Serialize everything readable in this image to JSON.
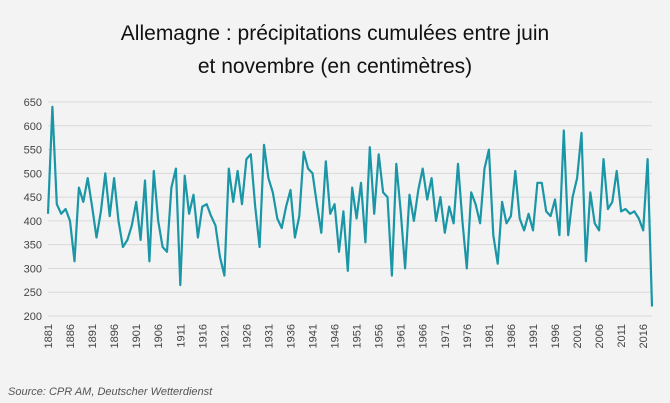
{
  "chart_data": {
    "type": "line",
    "title_line1": "Allemagne : précipitations cumulées entre juin",
    "title_line2": "et novembre (en centimètres)",
    "xlabel": "",
    "ylabel": "",
    "ylim": [
      200,
      650
    ],
    "yticks": [
      200,
      250,
      300,
      350,
      400,
      450,
      500,
      550,
      600,
      650
    ],
    "xticks": [
      1881,
      1886,
      1891,
      1896,
      1901,
      1906,
      1911,
      1916,
      1921,
      1926,
      1931,
      1936,
      1941,
      1946,
      1951,
      1956,
      1961,
      1966,
      1971,
      1976,
      1981,
      1986,
      1991,
      1996,
      2001,
      2006,
      2011,
      2016
    ],
    "grid": "horizontal",
    "line_color": "#1a96a6",
    "x_start": 1881,
    "x_end": 2018,
    "values": [
      415,
      640,
      435,
      415,
      425,
      400,
      315,
      470,
      440,
      490,
      430,
      365,
      420,
      500,
      410,
      490,
      400,
      345,
      360,
      390,
      440,
      360,
      485,
      315,
      505,
      400,
      345,
      335,
      470,
      510,
      265,
      495,
      415,
      455,
      365,
      430,
      435,
      410,
      390,
      325,
      285,
      510,
      440,
      505,
      435,
      530,
      540,
      430,
      345,
      560,
      490,
      460,
      405,
      385,
      430,
      465,
      365,
      410,
      545,
      510,
      500,
      435,
      375,
      525,
      415,
      435,
      335,
      420,
      295,
      470,
      405,
      480,
      355,
      555,
      415,
      540,
      460,
      450,
      285,
      520,
      420,
      300,
      455,
      400,
      465,
      510,
      445,
      490,
      400,
      450,
      375,
      430,
      395,
      520,
      400,
      300,
      460,
      435,
      395,
      510,
      550,
      370,
      310,
      440,
      395,
      410,
      505,
      405,
      380,
      415,
      380,
      480,
      480,
      420,
      410,
      445,
      370,
      590,
      370,
      450,
      490,
      585,
      315,
      460,
      395,
      380,
      530,
      425,
      440,
      505,
      420,
      425,
      415,
      420,
      405,
      380,
      530,
      220
    ]
  },
  "source": "Source: CPR AM, Deutscher Wetterdienst"
}
